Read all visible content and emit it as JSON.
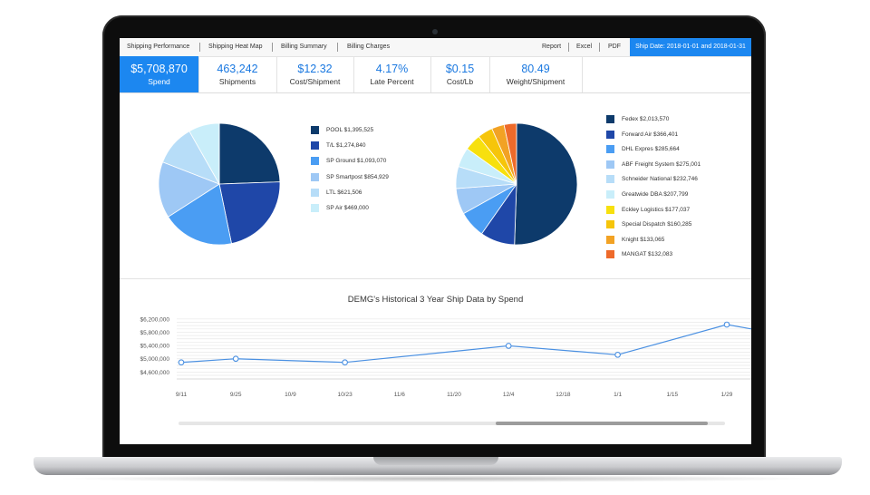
{
  "nav": {
    "tabs": [
      {
        "label": "Shipping Performance",
        "active": true
      },
      {
        "label": "Shipping Heat Map",
        "active": false
      },
      {
        "label": "Billing Summary",
        "active": false
      },
      {
        "label": "Billing Charges",
        "active": false
      }
    ],
    "actions": [
      "Report",
      "Excel",
      "PDF"
    ],
    "ship_date": "Ship Date: 2018-01-01 and 2018-01-31"
  },
  "kpis": [
    {
      "value": "$5,708,870",
      "label": "Spend",
      "active": true
    },
    {
      "value": "463,242",
      "label": "Shipments",
      "active": false
    },
    {
      "value": "$12.32",
      "label": "Cost/Shipment",
      "active": false
    },
    {
      "value": "4.17%",
      "label": "Late Percent",
      "active": false
    },
    {
      "value": "$0.15",
      "label": "Cost/Lb",
      "active": false
    },
    {
      "value": "80.49",
      "label": "Weight/Shipment",
      "active": false
    }
  ],
  "chart_data": [
    {
      "type": "pie",
      "title": "",
      "slices": [
        {
          "label": "POOL $1,395,525",
          "value": 1395525,
          "color": "#0d3a6b"
        },
        {
          "label": "T/L $1,274,840",
          "value": 1274840,
          "color": "#1f47a8"
        },
        {
          "label": "SP Ground $1,093,070",
          "value": 1093070,
          "color": "#4a9df3"
        },
        {
          "label": "SP Smartpost $854,929",
          "value": 854929,
          "color": "#9ec8f5"
        },
        {
          "label": "LTL $621,506",
          "value": 621506,
          "color": "#b7ddf8"
        },
        {
          "label": "SP Air $469,000",
          "value": 469000,
          "color": "#c9eefa"
        }
      ]
    },
    {
      "type": "pie",
      "title": "",
      "slices": [
        {
          "label": "Fedex $2,013,570",
          "value": 2013570,
          "color": "#0d3a6b"
        },
        {
          "label": "Forward Air $366,401",
          "value": 366401,
          "color": "#1f47a8"
        },
        {
          "label": "DHL Expres $285,664",
          "value": 285664,
          "color": "#4a9df3"
        },
        {
          "label": "ABF Freight System $275,001",
          "value": 275001,
          "color": "#9ec8f5"
        },
        {
          "label": "Schneider National $232,746",
          "value": 232746,
          "color": "#b7ddf8"
        },
        {
          "label": "Greatwide DBA $207,799",
          "value": 207799,
          "color": "#c9eefa"
        },
        {
          "label": "Eckley Logistics $177,037",
          "value": 177037,
          "color": "#f7e00e"
        },
        {
          "label": "Special Dispatch $160,285",
          "value": 160285,
          "color": "#f6c50a"
        },
        {
          "label": "Knight $133,065",
          "value": 133065,
          "color": "#f2a224"
        },
        {
          "label": "MANGAT $132,083",
          "value": 132083,
          "color": "#ee6a2a"
        }
      ]
    },
    {
      "type": "line",
      "title": "DEMG's Historical 3 Year Ship Data by Spend",
      "xlabel": "",
      "ylabel": "",
      "categories": [
        "9/11",
        "9/25",
        "10/9",
        "10/23",
        "11/6",
        "11/20",
        "12/4",
        "12/18",
        "1/1",
        "1/15",
        "1/29"
      ],
      "yticks": [
        "$6,200,000",
        "$5,800,000",
        "$5,400,000",
        "$5,000,000",
        "$4,600,000"
      ],
      "ylim": [
        4500000,
        6250000
      ],
      "grid": true,
      "color": "#4a90e2",
      "points": [
        {
          "x": "9/11",
          "y": 4890000
        },
        {
          "x": "9/25",
          "y": 5000000
        },
        {
          "x": "10/23",
          "y": 4890000
        },
        {
          "x": "12/4",
          "y": 5390000
        },
        {
          "x": "1/1",
          "y": 5120000
        },
        {
          "x": "1/29",
          "y": 6030000
        }
      ],
      "tail_y": 5900000
    }
  ]
}
